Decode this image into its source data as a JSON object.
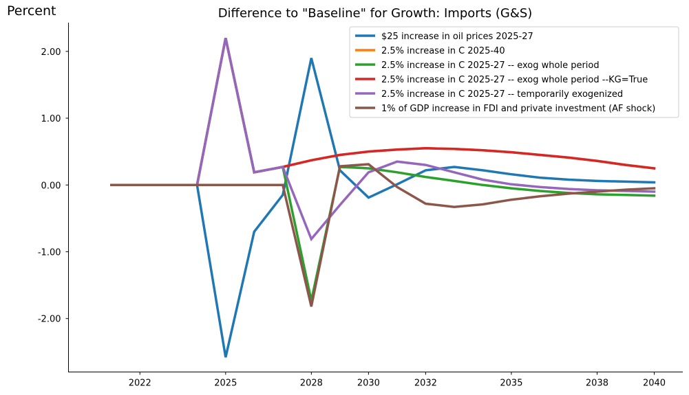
{
  "chart_data": {
    "type": "line",
    "title": "Difference to \"Baseline\" for Growth: Imports (G&S)",
    "ylabel": "Percent",
    "xlabel": "",
    "x": [
      2021,
      2022,
      2023,
      2024,
      2025,
      2026,
      2027,
      2028,
      2029,
      2030,
      2031,
      2032,
      2033,
      2034,
      2035,
      2036,
      2037,
      2038,
      2039,
      2040
    ],
    "xticks": [
      2022,
      2025,
      2028,
      2030,
      2032,
      2035,
      2038,
      2040
    ],
    "xtick_labels": [
      "2022",
      "2025",
      "2028",
      "2030",
      "2032",
      "2035",
      "2038",
      "2040"
    ],
    "xlim": [
      2019.5,
      2041
    ],
    "yticks": [
      -2,
      -1,
      0,
      1,
      2
    ],
    "ytick_labels": [
      "-2.00",
      "-1.00",
      "0.00",
      "1.00",
      "2.00"
    ],
    "ylim": [
      -2.8,
      2.43
    ],
    "grid": false,
    "legend_position": "top-right",
    "series": [
      {
        "name": "$25 increase in oil prices 2025-27",
        "color": "#1f77b4",
        "values": [
          0,
          0,
          0,
          0,
          -2.58,
          -0.7,
          -0.15,
          1.9,
          0.22,
          -0.19,
          0.01,
          0.22,
          0.27,
          0.22,
          0.16,
          0.11,
          0.08,
          0.06,
          0.05,
          0.04
        ]
      },
      {
        "name": "2.5% increase in C 2025-40",
        "color": "#ff7f0e",
        "values": [
          0,
          0,
          0,
          0,
          2.2,
          0.19,
          0.27,
          0.37,
          0.45,
          0.5,
          0.53,
          0.55,
          0.54,
          0.52,
          0.49,
          0.45,
          0.41,
          0.36,
          0.3,
          0.25
        ]
      },
      {
        "name": "2.5% increase in C 2025-27 -- exog whole period",
        "color": "#2ca02c",
        "values": [
          0,
          0,
          0,
          0,
          2.2,
          0.19,
          0.27,
          -1.73,
          0.27,
          0.25,
          0.19,
          0.12,
          0.06,
          0.0,
          -0.05,
          -0.09,
          -0.12,
          -0.14,
          -0.15,
          -0.16
        ]
      },
      {
        "name": "2.5% increase in C 2025-27 -- exog whole period --KG=True",
        "color": "#d62728",
        "values": [
          0,
          0,
          0,
          0,
          2.2,
          0.19,
          0.27,
          0.37,
          0.45,
          0.5,
          0.53,
          0.55,
          0.54,
          0.52,
          0.49,
          0.45,
          0.41,
          0.36,
          0.3,
          0.25
        ]
      },
      {
        "name": "2.5% increase in C 2025-27 -- temporarily exogenized",
        "color": "#9467bd",
        "values": [
          0,
          0,
          0,
          0,
          2.2,
          0.19,
          0.27,
          -0.81,
          -0.3,
          0.19,
          0.35,
          0.3,
          0.19,
          0.08,
          0.01,
          -0.03,
          -0.06,
          -0.08,
          -0.09,
          -0.1
        ]
      },
      {
        "name": "1% of GDP increase in FDI and private investment (AF shock)",
        "color": "#8c564b",
        "values": [
          0,
          0,
          0,
          0,
          0,
          0,
          0,
          -1.82,
          0.28,
          0.31,
          -0.03,
          -0.28,
          -0.33,
          -0.29,
          -0.22,
          -0.17,
          -0.13,
          -0.1,
          -0.07,
          -0.05
        ]
      }
    ]
  }
}
